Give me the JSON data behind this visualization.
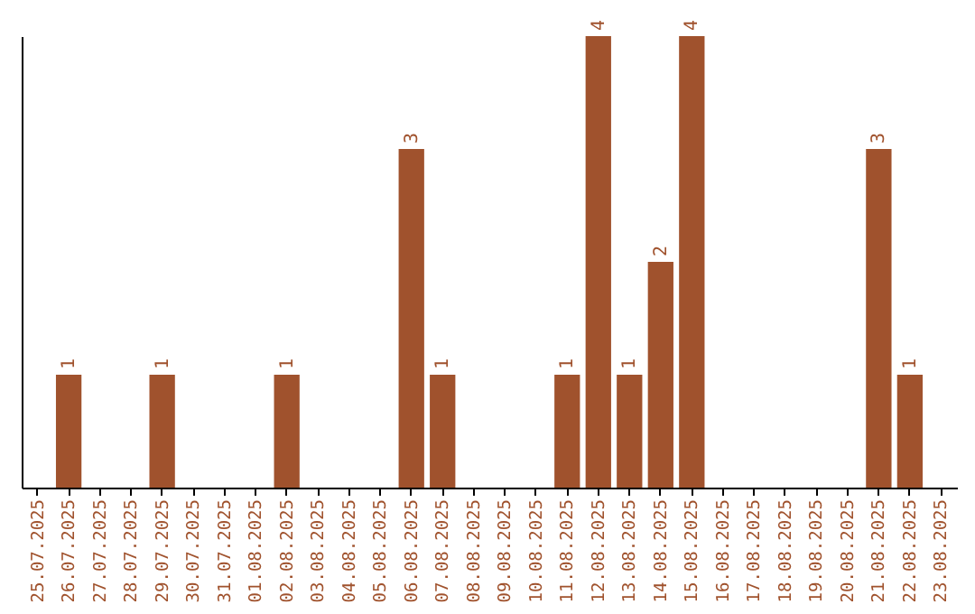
{
  "chart_data": {
    "type": "bar",
    "categories": [
      "25.07.2025",
      "26.07.2025",
      "27.07.2025",
      "28.07.2025",
      "29.07.2025",
      "30.07.2025",
      "31.07.2025",
      "01.08.2025",
      "02.08.2025",
      "03.08.2025",
      "04.08.2025",
      "05.08.2025",
      "06.08.2025",
      "07.08.2025",
      "08.08.2025",
      "09.08.2025",
      "10.08.2025",
      "11.08.2025",
      "12.08.2025",
      "13.08.2025",
      "14.08.2025",
      "15.08.2025",
      "16.08.2025",
      "17.08.2025",
      "18.08.2025",
      "19.08.2025",
      "20.08.2025",
      "21.08.2025",
      "22.08.2025",
      "23.08.2025"
    ],
    "values": [
      0,
      1,
      0,
      0,
      1,
      0,
      0,
      0,
      1,
      0,
      0,
      0,
      3,
      1,
      0,
      0,
      0,
      1,
      4,
      1,
      2,
      4,
      0,
      0,
      0,
      0,
      0,
      3,
      1,
      0
    ],
    "value_labels": [
      null,
      "1",
      null,
      null,
      "1",
      null,
      null,
      null,
      "1",
      null,
      null,
      null,
      "3",
      "1",
      null,
      null,
      null,
      "1",
      "4",
      "1",
      "2",
      "4",
      null,
      null,
      null,
      null,
      null,
      "3",
      "1",
      null
    ],
    "color": "#a0522d",
    "ylim": [
      0,
      4
    ],
    "tick_labels": "x",
    "grid": false
  }
}
